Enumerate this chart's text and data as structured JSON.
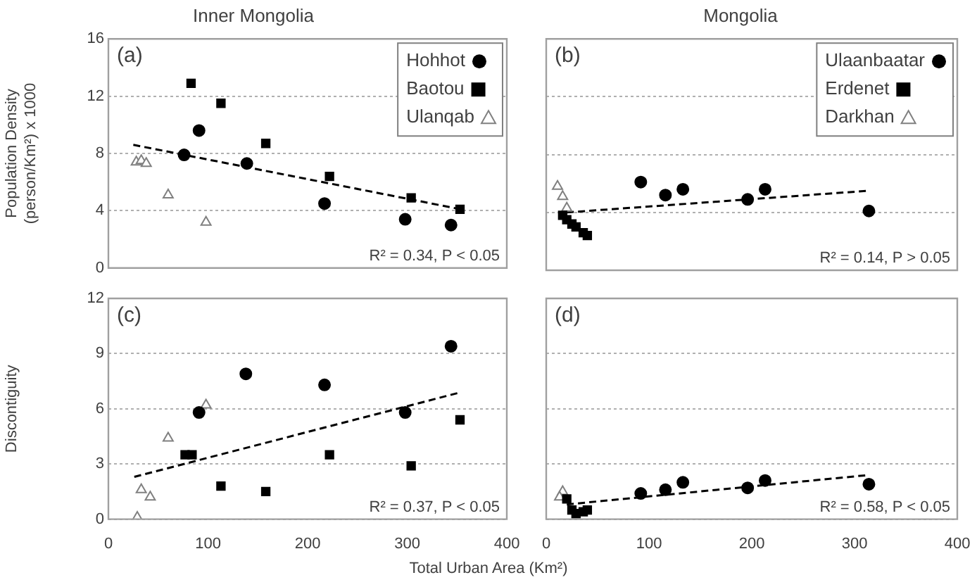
{
  "chart_data": [
    {
      "type": "scatter",
      "title": "Inner Mongolia",
      "ylabel": "Population Density (person/Km²) x 1000",
      "annotations": [
        "(a)",
        "R² = 0.34, P < 0.05"
      ],
      "xlim": [
        0,
        400
      ],
      "xticks": [
        0,
        100,
        200,
        300,
        400
      ],
      "ylim": [
        0,
        16
      ],
      "yticks": [
        0,
        4,
        8,
        12,
        16
      ],
      "grid": "y",
      "legend": "top right",
      "tick_labels": "y",
      "series": [
        {
          "name": "Hohhot",
          "color": "#000000",
          "marker": "circle",
          "x": [
            91,
            76,
            139,
            217,
            298,
            344
          ],
          "values": [
            9.6,
            7.9,
            7.3,
            4.5,
            3.4,
            3.0
          ]
        },
        {
          "name": "Baotou",
          "color": "#000000",
          "marker": "square",
          "x": [
            83,
            113,
            158,
            222,
            304,
            353
          ],
          "values": [
            12.9,
            11.5,
            8.7,
            6.4,
            4.9,
            4.1
          ]
        },
        {
          "name": "Ulanqab",
          "color": "#808080",
          "marker": "triangle",
          "x": [
            28,
            33,
            38,
            60,
            98
          ],
          "values": [
            7.4,
            7.5,
            7.3,
            5.1,
            3.2
          ]
        },
        {
          "type": "line",
          "color": "#000000",
          "line_style": "dashed",
          "marker": "none",
          "x": [
            25,
            354
          ],
          "values": [
            8.6,
            4.1
          ]
        }
      ]
    },
    {
      "type": "scatter",
      "title": "Mongolia",
      "annotations": [
        "(b)",
        "R² = 0.14, P > 0.05"
      ],
      "xlim": [
        0,
        400
      ],
      "xticks": [
        0,
        100,
        200,
        300,
        400
      ],
      "ylim": [
        0,
        16
      ],
      "yticks": [
        0,
        4,
        8,
        12,
        16
      ],
      "grid": "y",
      "legend": "top right",
      "tick_labels": false,
      "series": [
        {
          "name": "Ulaanbaatar",
          "color": "#000000",
          "marker": "circle",
          "x": [
            92,
            116,
            133,
            196,
            213,
            314
          ],
          "values": [
            6.1,
            5.2,
            5.6,
            4.9,
            5.6,
            4.1
          ]
        },
        {
          "name": "Erdenet",
          "color": "#000000",
          "marker": "square",
          "x": [
            16,
            20,
            25,
            29,
            36,
            40
          ],
          "values": [
            3.8,
            3.5,
            3.2,
            3.0,
            2.6,
            2.4
          ]
        },
        {
          "name": "Darkhan",
          "color": "#808080",
          "marker": "triangle",
          "x": [
            11,
            16,
            20
          ],
          "values": [
            5.8,
            5.1,
            4.3
          ]
        },
        {
          "type": "line",
          "color": "#000000",
          "line_style": "dashed",
          "marker": "none",
          "x": [
            20,
            314
          ],
          "values": [
            4.0,
            5.5
          ]
        }
      ]
    },
    {
      "type": "scatter",
      "ylabel": "Discontiguity",
      "xlabel": "Total Urban Area (Km²)",
      "annotations": [
        "(c)",
        "R² = 0.37, P < 0.05"
      ],
      "xlim": [
        0,
        400
      ],
      "xticks": [
        0,
        100,
        200,
        300,
        400
      ],
      "ylim": [
        0,
        12
      ],
      "yticks": [
        0,
        3,
        6,
        9,
        12
      ],
      "grid": "y",
      "series": [
        {
          "color": "#000000",
          "marker": "circle",
          "x": [
            91,
            138,
            217,
            298,
            344
          ],
          "values": [
            5.8,
            7.9,
            7.3,
            5.8,
            9.4
          ]
        },
        {
          "color": "#000000",
          "marker": "square",
          "x": [
            77,
            84,
            113,
            158,
            222,
            304,
            353
          ],
          "values": [
            3.5,
            3.5,
            1.8,
            1.5,
            3.5,
            2.9,
            5.4
          ]
        },
        {
          "color": "#808080",
          "marker": "triangle",
          "x": [
            98,
            60,
            33,
            42,
            29
          ],
          "values": [
            6.2,
            4.4,
            1.6,
            1.2,
            0.1
          ]
        },
        {
          "type": "line",
          "color": "#000000",
          "line_style": "dashed",
          "marker": "none",
          "x": [
            26,
            354
          ],
          "values": [
            2.3,
            6.9
          ]
        }
      ]
    },
    {
      "type": "scatter",
      "annotations": [
        "(d)",
        "R² = 0.58, P < 0.05"
      ],
      "xlim": [
        0,
        400
      ],
      "xticks": [
        0,
        100,
        200,
        300,
        400
      ],
      "ylim": [
        0,
        12
      ],
      "yticks": [
        0,
        3,
        6,
        9,
        12
      ],
      "grid": "y",
      "tick_labels": "x",
      "series": [
        {
          "color": "#000000",
          "marker": "circle",
          "x": [
            92,
            116,
            133,
            196,
            213,
            314
          ],
          "values": [
            1.4,
            1.6,
            2.0,
            1.7,
            2.1,
            1.9
          ]
        },
        {
          "color": "#000000",
          "marker": "square",
          "x": [
            20,
            25,
            29,
            36,
            40
          ],
          "values": [
            1.1,
            0.5,
            0.3,
            0.4,
            0.5
          ]
        },
        {
          "color": "#808080",
          "marker": "triangle",
          "x": [
            16,
            13
          ],
          "values": [
            1.5,
            1.2
          ]
        },
        {
          "type": "line",
          "color": "#000000",
          "line_style": "dashed",
          "marker": "none",
          "x": [
            20,
            314
          ],
          "values": [
            0.8,
            2.4
          ]
        }
      ]
    }
  ]
}
